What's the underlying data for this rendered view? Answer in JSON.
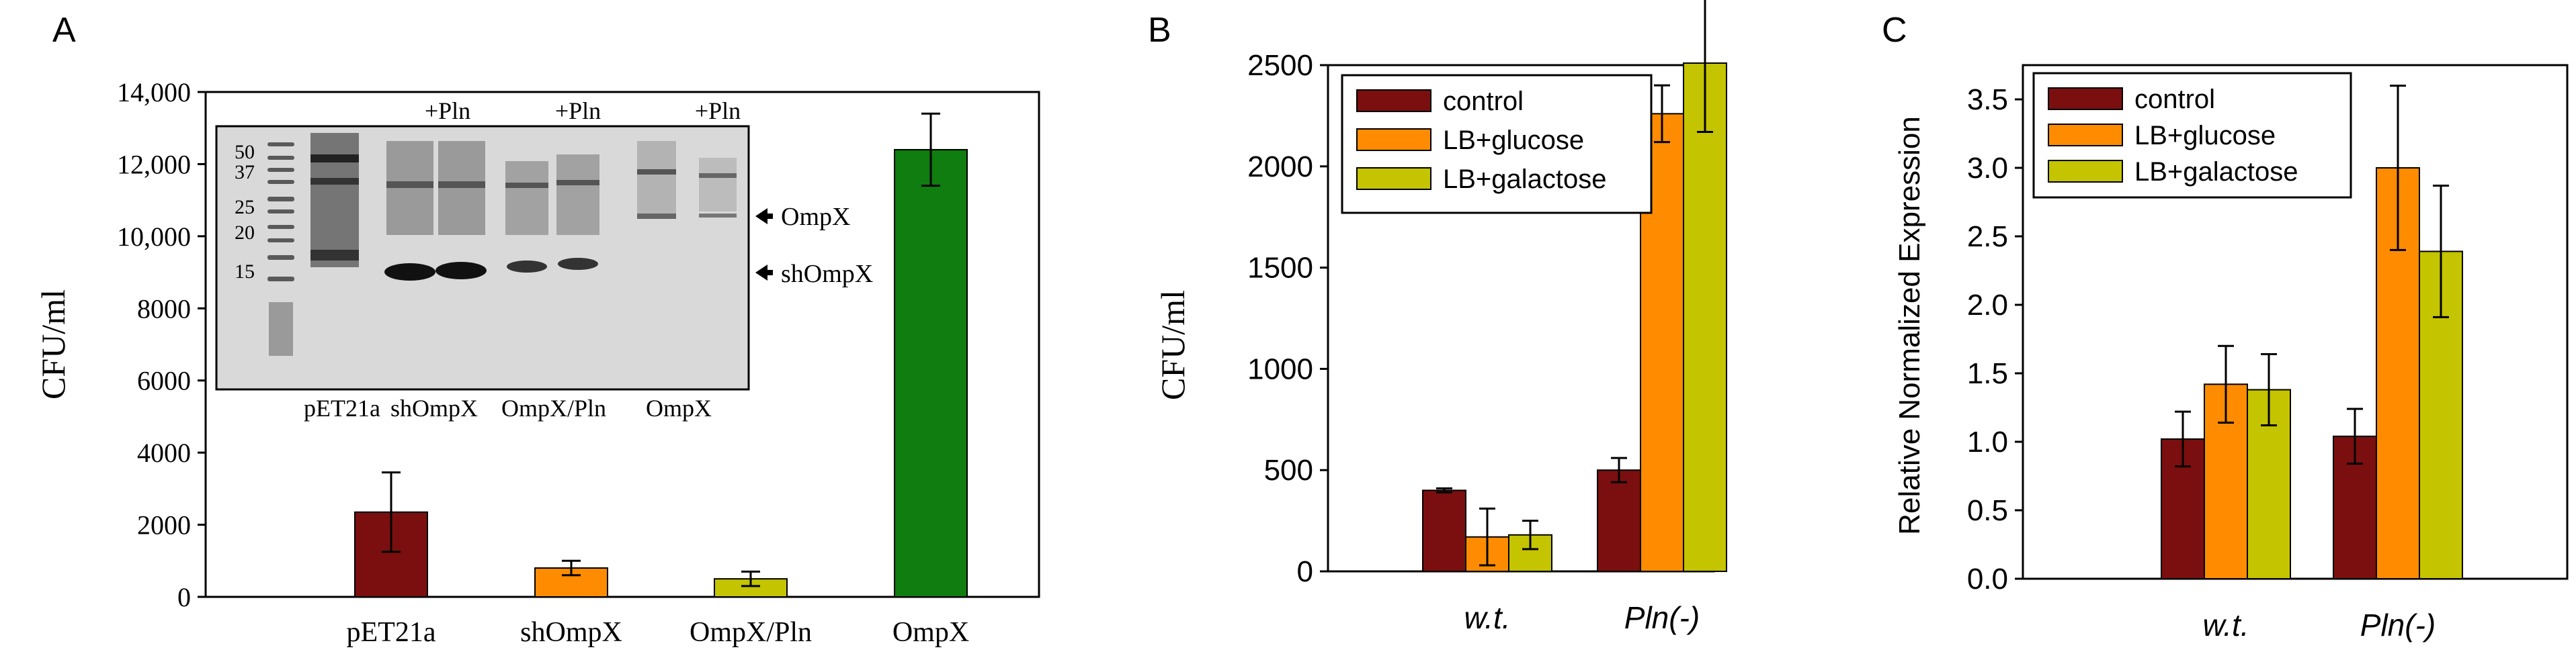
{
  "colors": {
    "control": "#7b0f0f",
    "glucose": "#ff8c00",
    "galactose": "#c4c400",
    "ompx_green": "#0f7d0f",
    "axis": "#000000",
    "gel_bg": "#d8d8d8"
  },
  "panels": {
    "A": {
      "letter": "A"
    },
    "B": {
      "letter": "B"
    },
    "C": {
      "letter": "C"
    }
  },
  "gel": {
    "plus_labels": [
      "+Pln",
      "+Pln",
      "+Pln"
    ],
    "markers": [
      "50",
      "37",
      "25",
      "20",
      "15"
    ],
    "arrow_labels": [
      "OmpX",
      "shOmpX"
    ],
    "lane_labels": [
      "pET21a",
      "shOmpX",
      "OmpX/Pln",
      "OmpX"
    ]
  },
  "chart_data": [
    {
      "panel": "A",
      "type": "bar",
      "ylabel": "CFU/ml",
      "ylim": [
        0,
        14000
      ],
      "yticks": [
        "0",
        "2000",
        "4000",
        "6000",
        "8000",
        "10,000",
        "12,000",
        "14,000"
      ],
      "ytick_values": [
        0,
        2000,
        4000,
        6000,
        8000,
        10000,
        12000,
        14000
      ],
      "categories": [
        "pET21a",
        "shOmpX",
        "OmpX/Pln",
        "OmpX"
      ],
      "values": [
        2350,
        800,
        500,
        12400
      ],
      "errors": [
        1100,
        200,
        200,
        1000
      ],
      "bar_colors": [
        "#7b0f0f",
        "#ff8c00",
        "#c4c400",
        "#0f7d0f"
      ]
    },
    {
      "panel": "B",
      "type": "bar",
      "ylabel": "CFU/ml",
      "ylim": [
        0,
        2500
      ],
      "yticks": [
        "0",
        "500",
        "1000",
        "1500",
        "2000",
        "2500"
      ],
      "ytick_values": [
        0,
        500,
        1000,
        1500,
        2000,
        2500
      ],
      "categories": [
        "w.t.",
        "Pln(-)"
      ],
      "series": [
        {
          "name": "control",
          "values": [
            400,
            500
          ],
          "errors": [
            10,
            60
          ]
        },
        {
          "name": "LB+glucose",
          "values": [
            170,
            2260
          ],
          "errors": [
            140,
            140
          ]
        },
        {
          "name": "LB+galactose",
          "values": [
            180,
            2510
          ],
          "errors": [
            70,
            340
          ]
        }
      ],
      "legend": [
        "control",
        "LB+glucose",
        "LB+galactose"
      ]
    },
    {
      "panel": "C",
      "type": "bar",
      "ylabel": "Relative Normalized Expression",
      "ylim": [
        0,
        3.75
      ],
      "yticks": [
        "0.0",
        "0.5",
        "1.0",
        "1.5",
        "2.0",
        "2.5",
        "3.0",
        "3.5"
      ],
      "ytick_values": [
        0,
        0.5,
        1.0,
        1.5,
        2.0,
        2.5,
        3.0,
        3.5
      ],
      "categories": [
        "w.t.",
        "Pln(-)"
      ],
      "series": [
        {
          "name": "control",
          "values": [
            1.02,
            1.04
          ],
          "errors": [
            0.2,
            0.2
          ]
        },
        {
          "name": "LB+glucose",
          "values": [
            1.42,
            3.0
          ],
          "errors": [
            0.28,
            0.6
          ]
        },
        {
          "name": "LB+galactose",
          "values": [
            1.38,
            2.39
          ],
          "errors": [
            0.26,
            0.48
          ]
        }
      ],
      "legend": [
        "control",
        "LB+glucose",
        "LB+galactose"
      ]
    }
  ]
}
